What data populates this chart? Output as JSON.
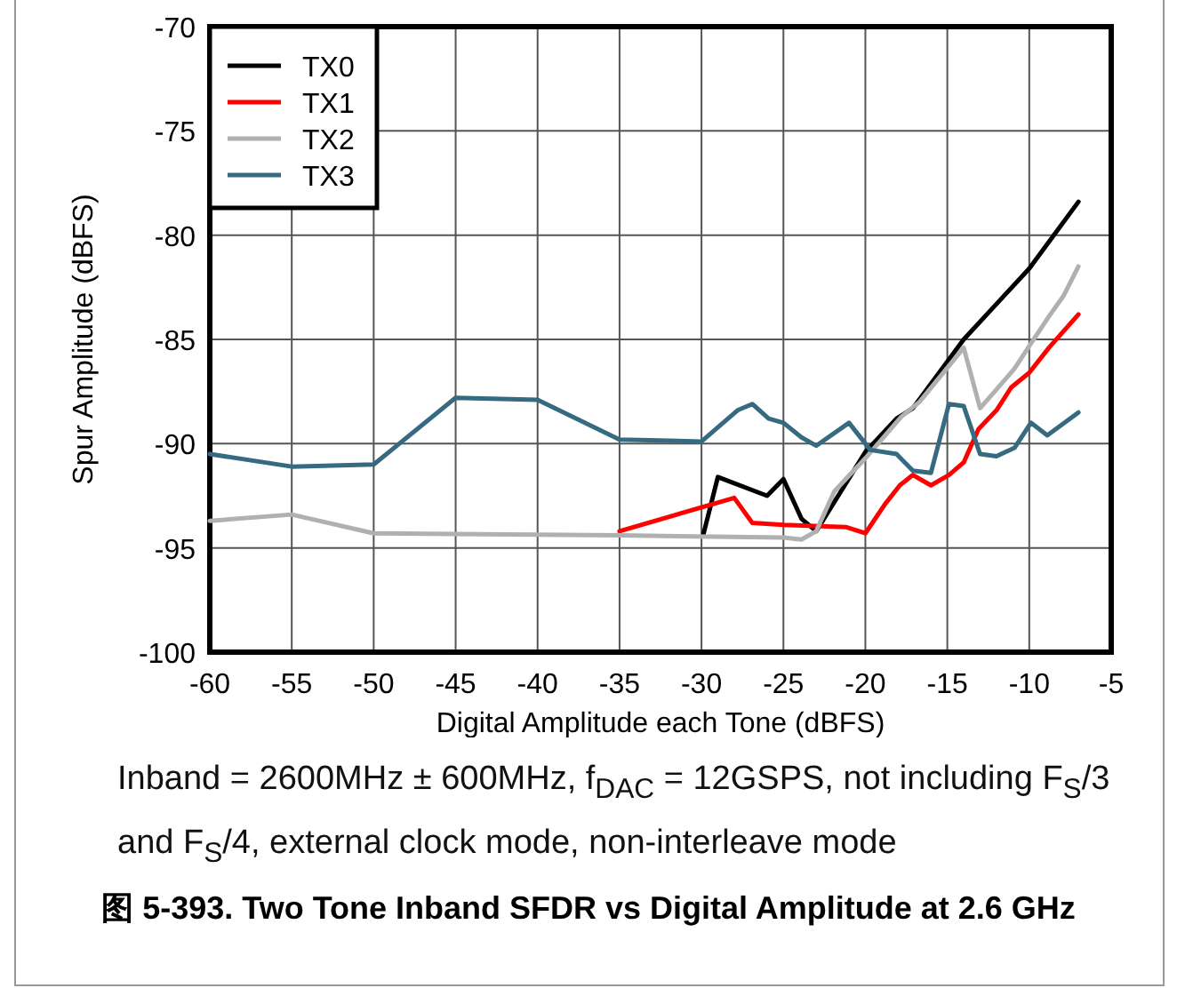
{
  "chart_data": {
    "type": "line",
    "title": "图 5-393. Two Tone Inband SFDR vs Digital Amplitude at 2.6 GHz",
    "xlabel": "Digital Amplitude each Tone (dBFS)",
    "ylabel": "Spur Amplitude (dBFS)",
    "annotations": [
      "Inband = 2600MHz ± 600MHz, f$_{DAC}$ = 12GSPS, not including F$_{S}$/3 and F$_{S}$/4, external clock mode, non-interleave mode"
    ],
    "xlim": [
      -60,
      -5
    ],
    "xticks": [
      -60,
      -55,
      -50,
      -45,
      -40,
      -35,
      -30,
      -25,
      -20,
      -15,
      -10,
      -5
    ],
    "ylim": [
      -100,
      -70
    ],
    "yticks": [
      -100,
      -95,
      -90,
      -85,
      -80,
      -75,
      -70
    ],
    "grid": true,
    "legend": "top left",
    "line_style": "solid",
    "marker": "none",
    "series": [
      {
        "name": "TX0",
        "color": "#000000",
        "x": [
          -29.9,
          -29,
          -26,
          -25,
          -23.9,
          -23,
          -20,
          -18.1,
          -17.1,
          -14,
          -12,
          -10,
          -7
        ],
        "values": [
          -94.4,
          -91.6,
          -92.5,
          -91.7,
          -93.6,
          -94.2,
          -90.4,
          -88.8,
          -88.3,
          -85,
          -83.3,
          -81.6,
          -78.4
        ]
      },
      {
        "name": "TX1",
        "color": "#ff0000",
        "x": [
          -35,
          -28,
          -26.9,
          -25,
          -21.2,
          -20,
          -18.8,
          -17.9,
          -17.1,
          -16,
          -14.9,
          -14,
          -13.1,
          -12,
          -11.1,
          -10,
          -8.8,
          -7
        ],
        "values": [
          -94.2,
          -92.6,
          -93.8,
          -93.9,
          -94,
          -94.3,
          -92.9,
          -92,
          -91.5,
          -92,
          -91.5,
          -90.9,
          -89.3,
          -88.4,
          -87.3,
          -86.6,
          -85.4,
          -83.8
        ]
      },
      {
        "name": "TX2",
        "color": "#b0b0b0",
        "x": [
          -60,
          -55,
          -50,
          -35,
          -25,
          -23.9,
          -23,
          -21.9,
          -21.2,
          -20,
          -18.9,
          -17.8,
          -16.7,
          -14,
          -13,
          -12,
          -10.9,
          -9.9,
          -8.8,
          -7.9,
          -7
        ],
        "values": [
          -93.7,
          -93.4,
          -94.3,
          -94.4,
          -94.5,
          -94.6,
          -94.2,
          -92.3,
          -91.7,
          -90.7,
          -89.7,
          -88.7,
          -88,
          -85.4,
          -88.3,
          -87.4,
          -86.4,
          -85.2,
          -83.9,
          -82.9,
          -81.5
        ]
      },
      {
        "name": "TX3",
        "color": "#356a80",
        "x": [
          -60,
          -55,
          -50,
          -45,
          -40,
          -35,
          -30,
          -27.8,
          -26.9,
          -25.9,
          -25,
          -23.9,
          -23,
          -21,
          -19.7,
          -18.1,
          -17.1,
          -16,
          -14.9,
          -14,
          -13,
          -12,
          -10.9,
          -9.9,
          -8.9,
          -7
        ],
        "values": [
          -90.5,
          -91.1,
          -91,
          -87.8,
          -87.9,
          -89.8,
          -89.9,
          -88.4,
          -88.1,
          -88.8,
          -89,
          -89.7,
          -90.1,
          -89,
          -90.3,
          -90.5,
          -91.3,
          -91.4,
          -88.1,
          -88.2,
          -90.5,
          -90.6,
          -90.2,
          -89,
          -89.6,
          -88.5
        ]
      }
    ]
  }
}
